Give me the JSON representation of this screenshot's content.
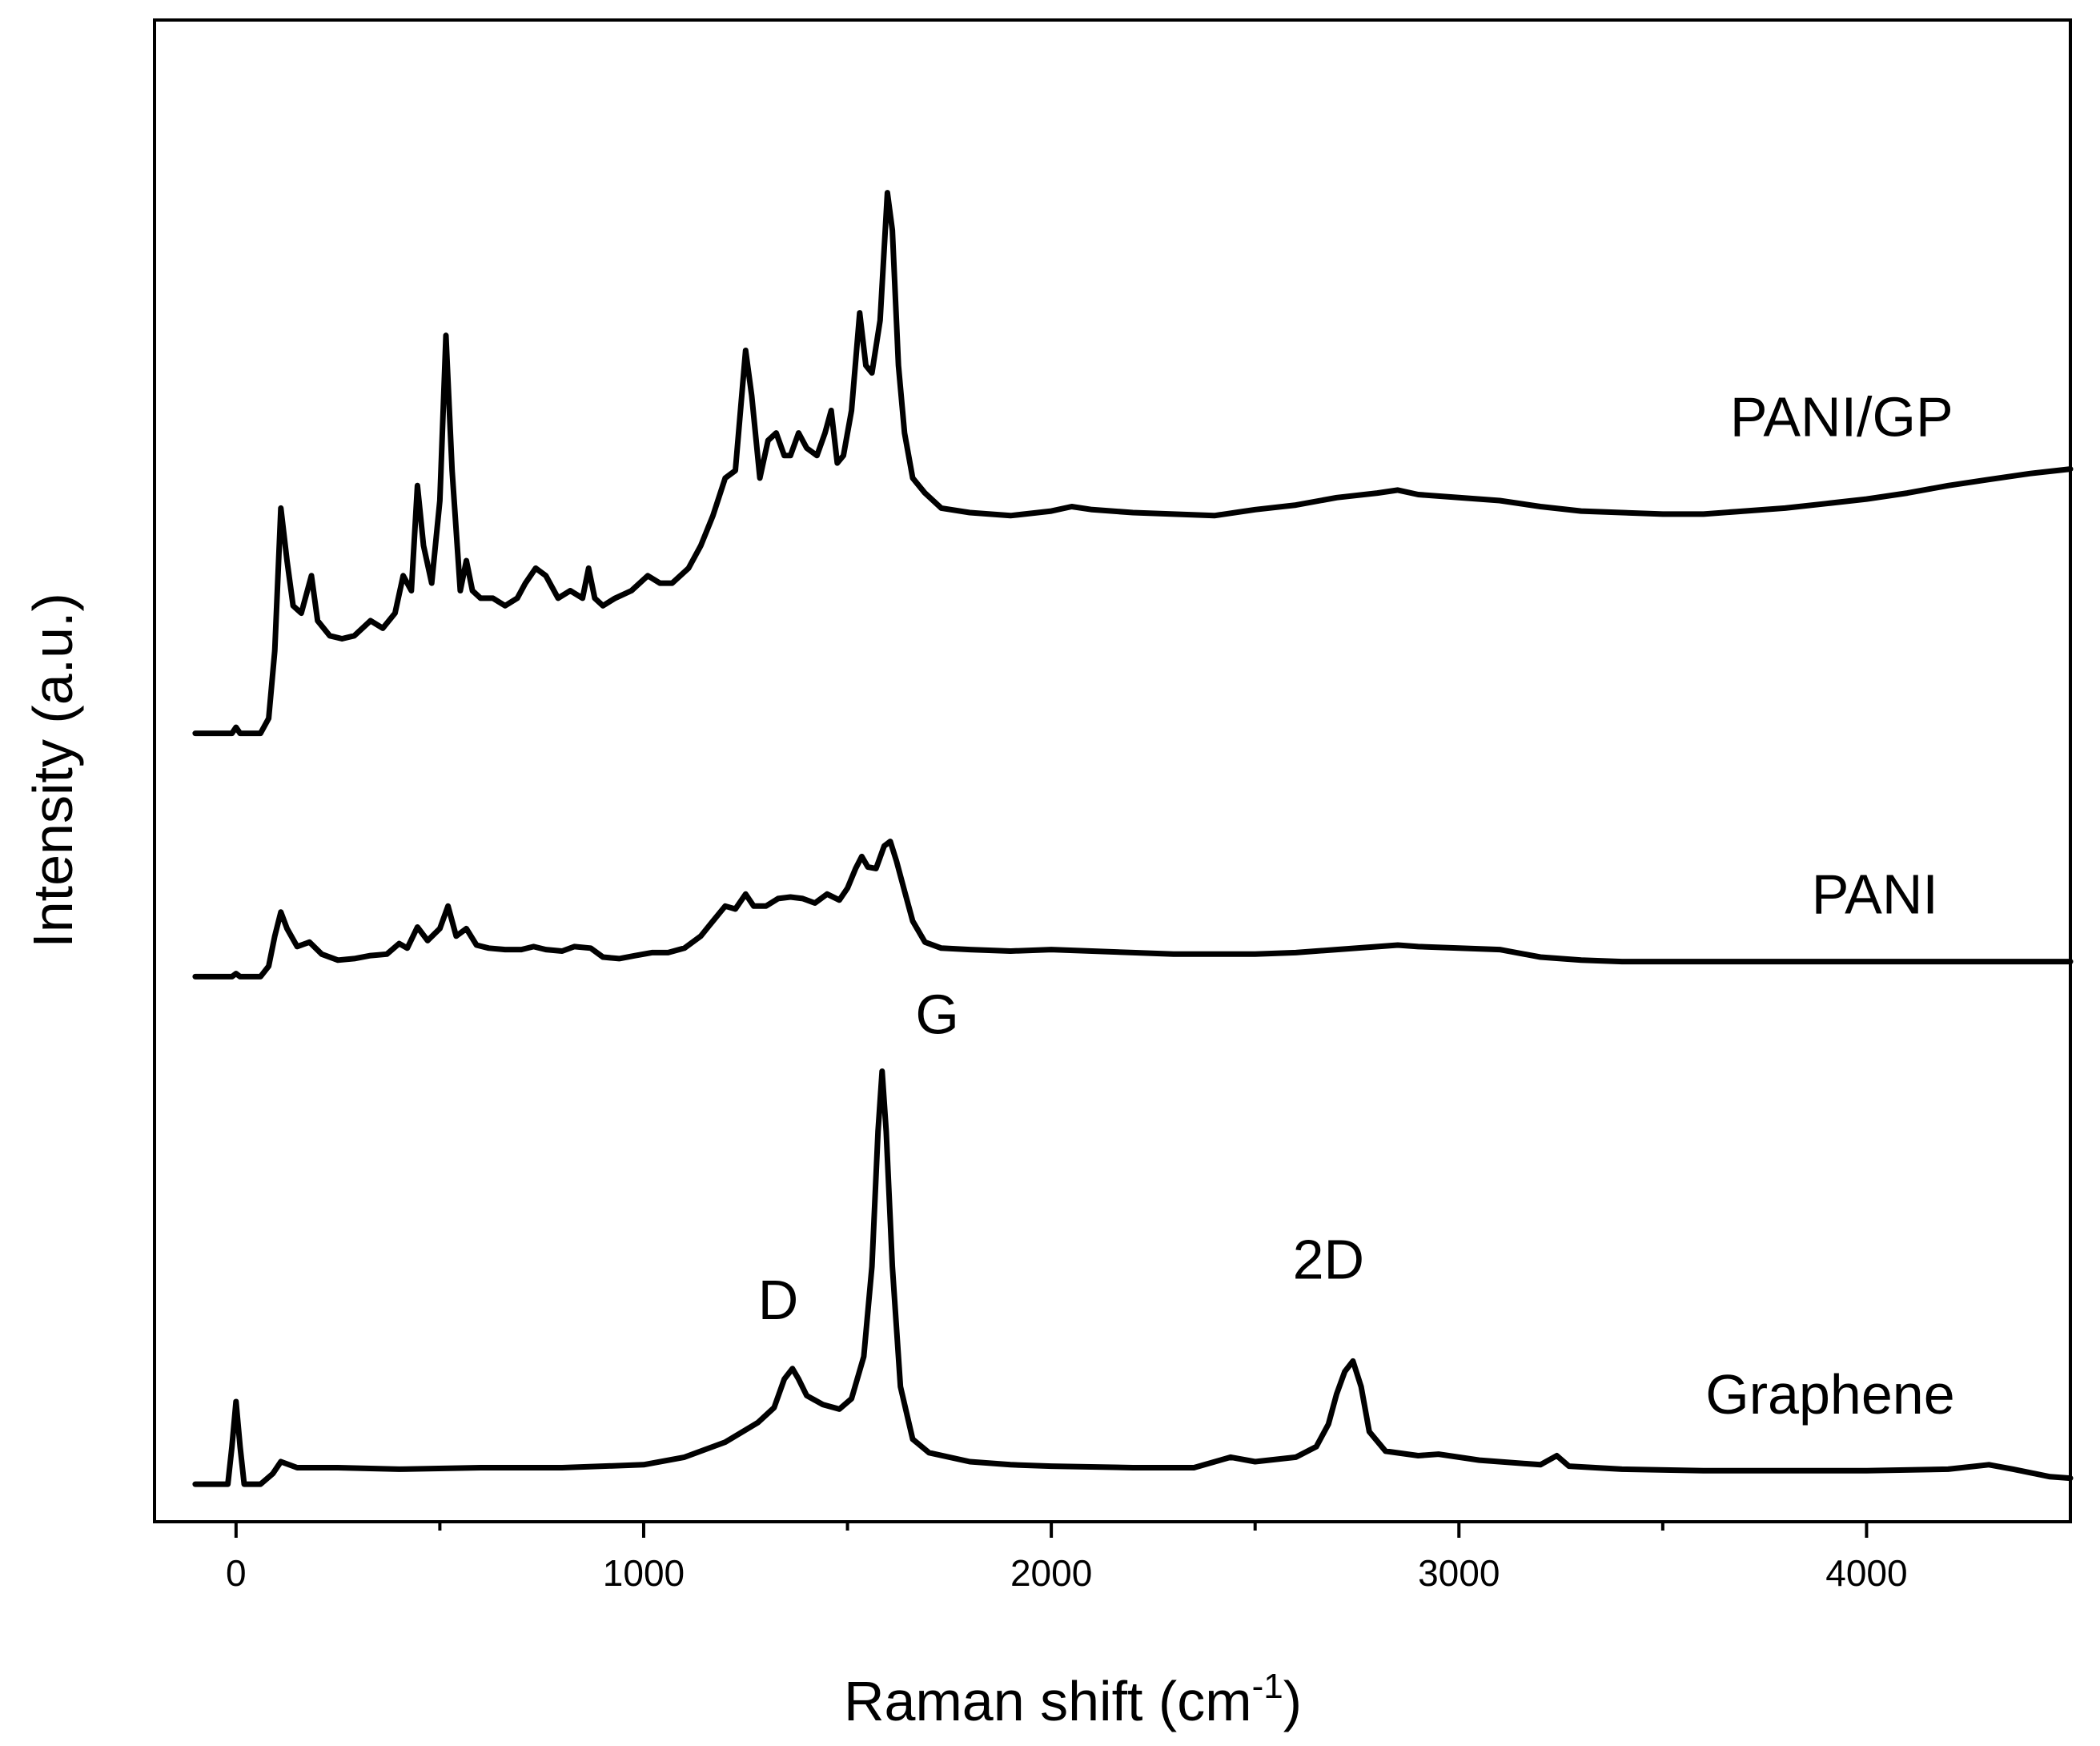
{
  "chart_data": {
    "type": "line",
    "title": "",
    "xlabel": "Raman shift (cm",
    "xlabel_sup": "-1",
    "xlabel_close": ")",
    "ylabel": "Intensity (a.u.)",
    "xlim": [
      -200,
      4500
    ],
    "ylim": [
      0,
      100
    ],
    "x_ticks": [
      0,
      1000,
      2000,
      3000,
      4000
    ],
    "x_tick_labels": [
      "0",
      "1000",
      "2000",
      "3000",
      "4000"
    ],
    "x_minor_ticks": [
      500,
      1500,
      2500,
      3500
    ],
    "grid": false,
    "y_ticks_visible": false,
    "series": [
      {
        "name": "PANI/GP",
        "points": [
          [
            -100,
            52.5
          ],
          [
            -10,
            52.5
          ],
          [
            0,
            52.9
          ],
          [
            10,
            52.5
          ],
          [
            60,
            52.5
          ],
          [
            80,
            53.5
          ],
          [
            95,
            58
          ],
          [
            110,
            67.5
          ],
          [
            125,
            64
          ],
          [
            140,
            61
          ],
          [
            160,
            60.5
          ],
          [
            185,
            63
          ],
          [
            200,
            60
          ],
          [
            230,
            59
          ],
          [
            260,
            58.8
          ],
          [
            290,
            59
          ],
          [
            330,
            60
          ],
          [
            360,
            59.5
          ],
          [
            390,
            60.5
          ],
          [
            410,
            63
          ],
          [
            430,
            62
          ],
          [
            445,
            69
          ],
          [
            460,
            65
          ],
          [
            480,
            62.5
          ],
          [
            500,
            68
          ],
          [
            515,
            79
          ],
          [
            530,
            70
          ],
          [
            550,
            62
          ],
          [
            565,
            64
          ],
          [
            580,
            62
          ],
          [
            600,
            61.5
          ],
          [
            630,
            61.5
          ],
          [
            660,
            61
          ],
          [
            690,
            61.5
          ],
          [
            710,
            62.5
          ],
          [
            735,
            63.5
          ],
          [
            760,
            63
          ],
          [
            790,
            61.5
          ],
          [
            820,
            62
          ],
          [
            850,
            61.5
          ],
          [
            865,
            63.5
          ],
          [
            880,
            61.5
          ],
          [
            900,
            61
          ],
          [
            930,
            61.5
          ],
          [
            970,
            62
          ],
          [
            1010,
            63
          ],
          [
            1040,
            62.5
          ],
          [
            1070,
            62.5
          ],
          [
            1110,
            63.5
          ],
          [
            1140,
            65
          ],
          [
            1170,
            67
          ],
          [
            1200,
            69.5
          ],
          [
            1225,
            70
          ],
          [
            1250,
            78
          ],
          [
            1265,
            75
          ],
          [
            1285,
            69.5
          ],
          [
            1305,
            72
          ],
          [
            1325,
            72.5
          ],
          [
            1345,
            71
          ],
          [
            1360,
            71
          ],
          [
            1380,
            72.5
          ],
          [
            1400,
            71.5
          ],
          [
            1425,
            71
          ],
          [
            1445,
            72.5
          ],
          [
            1460,
            74
          ],
          [
            1475,
            70.5
          ],
          [
            1490,
            71
          ],
          [
            1510,
            74
          ],
          [
            1530,
            80.5
          ],
          [
            1545,
            77
          ],
          [
            1560,
            76.5
          ],
          [
            1580,
            80
          ],
          [
            1598,
            88.5
          ],
          [
            1610,
            86
          ],
          [
            1625,
            77
          ],
          [
            1640,
            72.5
          ],
          [
            1660,
            69.5
          ],
          [
            1690,
            68.5
          ],
          [
            1730,
            67.5
          ],
          [
            1800,
            67.2
          ],
          [
            1900,
            67
          ],
          [
            2000,
            67.3
          ],
          [
            2050,
            67.6
          ],
          [
            2100,
            67.4
          ],
          [
            2200,
            67.2
          ],
          [
            2300,
            67.1
          ],
          [
            2400,
            67
          ],
          [
            2500,
            67.4
          ],
          [
            2600,
            67.7
          ],
          [
            2700,
            68.2
          ],
          [
            2800,
            68.5
          ],
          [
            2850,
            68.7
          ],
          [
            2900,
            68.4
          ],
          [
            3000,
            68.2
          ],
          [
            3100,
            68
          ],
          [
            3200,
            67.6
          ],
          [
            3300,
            67.3
          ],
          [
            3400,
            67.2
          ],
          [
            3500,
            67.1
          ],
          [
            3600,
            67.1
          ],
          [
            3700,
            67.3
          ],
          [
            3800,
            67.5
          ],
          [
            3900,
            67.8
          ],
          [
            4000,
            68.1
          ],
          [
            4100,
            68.5
          ],
          [
            4200,
            69
          ],
          [
            4300,
            69.4
          ],
          [
            4400,
            69.8
          ],
          [
            4500,
            70.1
          ]
        ]
      },
      {
        "name": "PANI",
        "points": [
          [
            -100,
            36.3
          ],
          [
            -10,
            36.3
          ],
          [
            0,
            36.5
          ],
          [
            10,
            36.3
          ],
          [
            60,
            36.3
          ],
          [
            80,
            37
          ],
          [
            95,
            39
          ],
          [
            110,
            40.6
          ],
          [
            125,
            39.5
          ],
          [
            150,
            38.3
          ],
          [
            180,
            38.6
          ],
          [
            210,
            37.8
          ],
          [
            250,
            37.4
          ],
          [
            290,
            37.5
          ],
          [
            330,
            37.7
          ],
          [
            370,
            37.8
          ],
          [
            400,
            38.5
          ],
          [
            420,
            38.2
          ],
          [
            445,
            39.6
          ],
          [
            470,
            38.7
          ],
          [
            500,
            39.5
          ],
          [
            520,
            41
          ],
          [
            540,
            39
          ],
          [
            565,
            39.5
          ],
          [
            590,
            38.4
          ],
          [
            620,
            38.2
          ],
          [
            660,
            38.1
          ],
          [
            700,
            38.1
          ],
          [
            730,
            38.3
          ],
          [
            760,
            38.1
          ],
          [
            800,
            38
          ],
          [
            830,
            38.3
          ],
          [
            870,
            38.2
          ],
          [
            900,
            37.6
          ],
          [
            940,
            37.5
          ],
          [
            980,
            37.7
          ],
          [
            1020,
            37.9
          ],
          [
            1060,
            37.9
          ],
          [
            1100,
            38.2
          ],
          [
            1140,
            39
          ],
          [
            1170,
            40
          ],
          [
            1200,
            41
          ],
          [
            1225,
            40.8
          ],
          [
            1250,
            41.8
          ],
          [
            1270,
            41
          ],
          [
            1300,
            41
          ],
          [
            1330,
            41.5
          ],
          [
            1360,
            41.6
          ],
          [
            1390,
            41.5
          ],
          [
            1420,
            41.2
          ],
          [
            1450,
            41.8
          ],
          [
            1480,
            41.4
          ],
          [
            1500,
            42.2
          ],
          [
            1520,
            43.5
          ],
          [
            1535,
            44.3
          ],
          [
            1550,
            43.6
          ],
          [
            1570,
            43.5
          ],
          [
            1590,
            45
          ],
          [
            1605,
            45.3
          ],
          [
            1620,
            44
          ],
          [
            1640,
            42
          ],
          [
            1660,
            40
          ],
          [
            1690,
            38.6
          ],
          [
            1730,
            38.2
          ],
          [
            1800,
            38.1
          ],
          [
            1900,
            38
          ],
          [
            2000,
            38.1
          ],
          [
            2100,
            38
          ],
          [
            2200,
            37.9
          ],
          [
            2300,
            37.8
          ],
          [
            2400,
            37.8
          ],
          [
            2500,
            37.8
          ],
          [
            2600,
            37.9
          ],
          [
            2700,
            38.1
          ],
          [
            2800,
            38.3
          ],
          [
            2850,
            38.4
          ],
          [
            2900,
            38.3
          ],
          [
            3000,
            38.2
          ],
          [
            3100,
            38.1
          ],
          [
            3200,
            37.6
          ],
          [
            3300,
            37.4
          ],
          [
            3400,
            37.3
          ],
          [
            3500,
            37.3
          ],
          [
            3600,
            37.3
          ],
          [
            3700,
            37.3
          ],
          [
            3800,
            37.3
          ],
          [
            3900,
            37.3
          ],
          [
            4000,
            37.3
          ],
          [
            4100,
            37.3
          ],
          [
            4200,
            37.3
          ],
          [
            4300,
            37.3
          ],
          [
            4400,
            37.3
          ],
          [
            4500,
            37.3
          ]
        ]
      },
      {
        "name": "Graphene",
        "points": [
          [
            -100,
            2.5
          ],
          [
            -20,
            2.5
          ],
          [
            -10,
            5
          ],
          [
            0,
            8
          ],
          [
            10,
            5
          ],
          [
            20,
            2.5
          ],
          [
            60,
            2.5
          ],
          [
            90,
            3.2
          ],
          [
            110,
            4
          ],
          [
            150,
            3.6
          ],
          [
            250,
            3.6
          ],
          [
            400,
            3.5
          ],
          [
            600,
            3.6
          ],
          [
            800,
            3.6
          ],
          [
            1000,
            3.8
          ],
          [
            1100,
            4.3
          ],
          [
            1200,
            5.3
          ],
          [
            1280,
            6.6
          ],
          [
            1320,
            7.6
          ],
          [
            1345,
            9.5
          ],
          [
            1365,
            10.2
          ],
          [
            1380,
            9.5
          ],
          [
            1400,
            8.4
          ],
          [
            1440,
            7.8
          ],
          [
            1480,
            7.5
          ],
          [
            1510,
            8.2
          ],
          [
            1540,
            11
          ],
          [
            1560,
            17
          ],
          [
            1575,
            26
          ],
          [
            1585,
            30
          ],
          [
            1595,
            26
          ],
          [
            1610,
            17
          ],
          [
            1630,
            9
          ],
          [
            1660,
            5.5
          ],
          [
            1700,
            4.6
          ],
          [
            1800,
            4
          ],
          [
            1900,
            3.8
          ],
          [
            2000,
            3.7
          ],
          [
            2200,
            3.6
          ],
          [
            2350,
            3.6
          ],
          [
            2440,
            4.3
          ],
          [
            2500,
            4
          ],
          [
            2600,
            4.3
          ],
          [
            2650,
            5
          ],
          [
            2680,
            6.5
          ],
          [
            2700,
            8.5
          ],
          [
            2720,
            10
          ],
          [
            2740,
            10.7
          ],
          [
            2760,
            9
          ],
          [
            2780,
            6
          ],
          [
            2820,
            4.7
          ],
          [
            2900,
            4.4
          ],
          [
            2950,
            4.5
          ],
          [
            3050,
            4.1
          ],
          [
            3200,
            3.8
          ],
          [
            3240,
            4.4
          ],
          [
            3270,
            3.7
          ],
          [
            3400,
            3.5
          ],
          [
            3600,
            3.4
          ],
          [
            3800,
            3.4
          ],
          [
            4000,
            3.4
          ],
          [
            4200,
            3.5
          ],
          [
            4300,
            3.8
          ],
          [
            4360,
            3.5
          ],
          [
            4450,
            3
          ],
          [
            4500,
            2.9
          ]
        ]
      }
    ],
    "annotations": [
      {
        "text": "D",
        "x": 1330,
        "y": 13.5
      },
      {
        "text": "G",
        "x": 1720,
        "y": 32.5
      },
      {
        "text": "2D",
        "x": 2680,
        "y": 16.2
      }
    ],
    "series_labels": [
      {
        "text": "PANI/GP",
        "x": 3665,
        "y": 72.3
      },
      {
        "text": "PANI",
        "x": 3865,
        "y": 40.5
      },
      {
        "text": "Graphene",
        "x": 3605,
        "y": 7.2
      }
    ]
  }
}
